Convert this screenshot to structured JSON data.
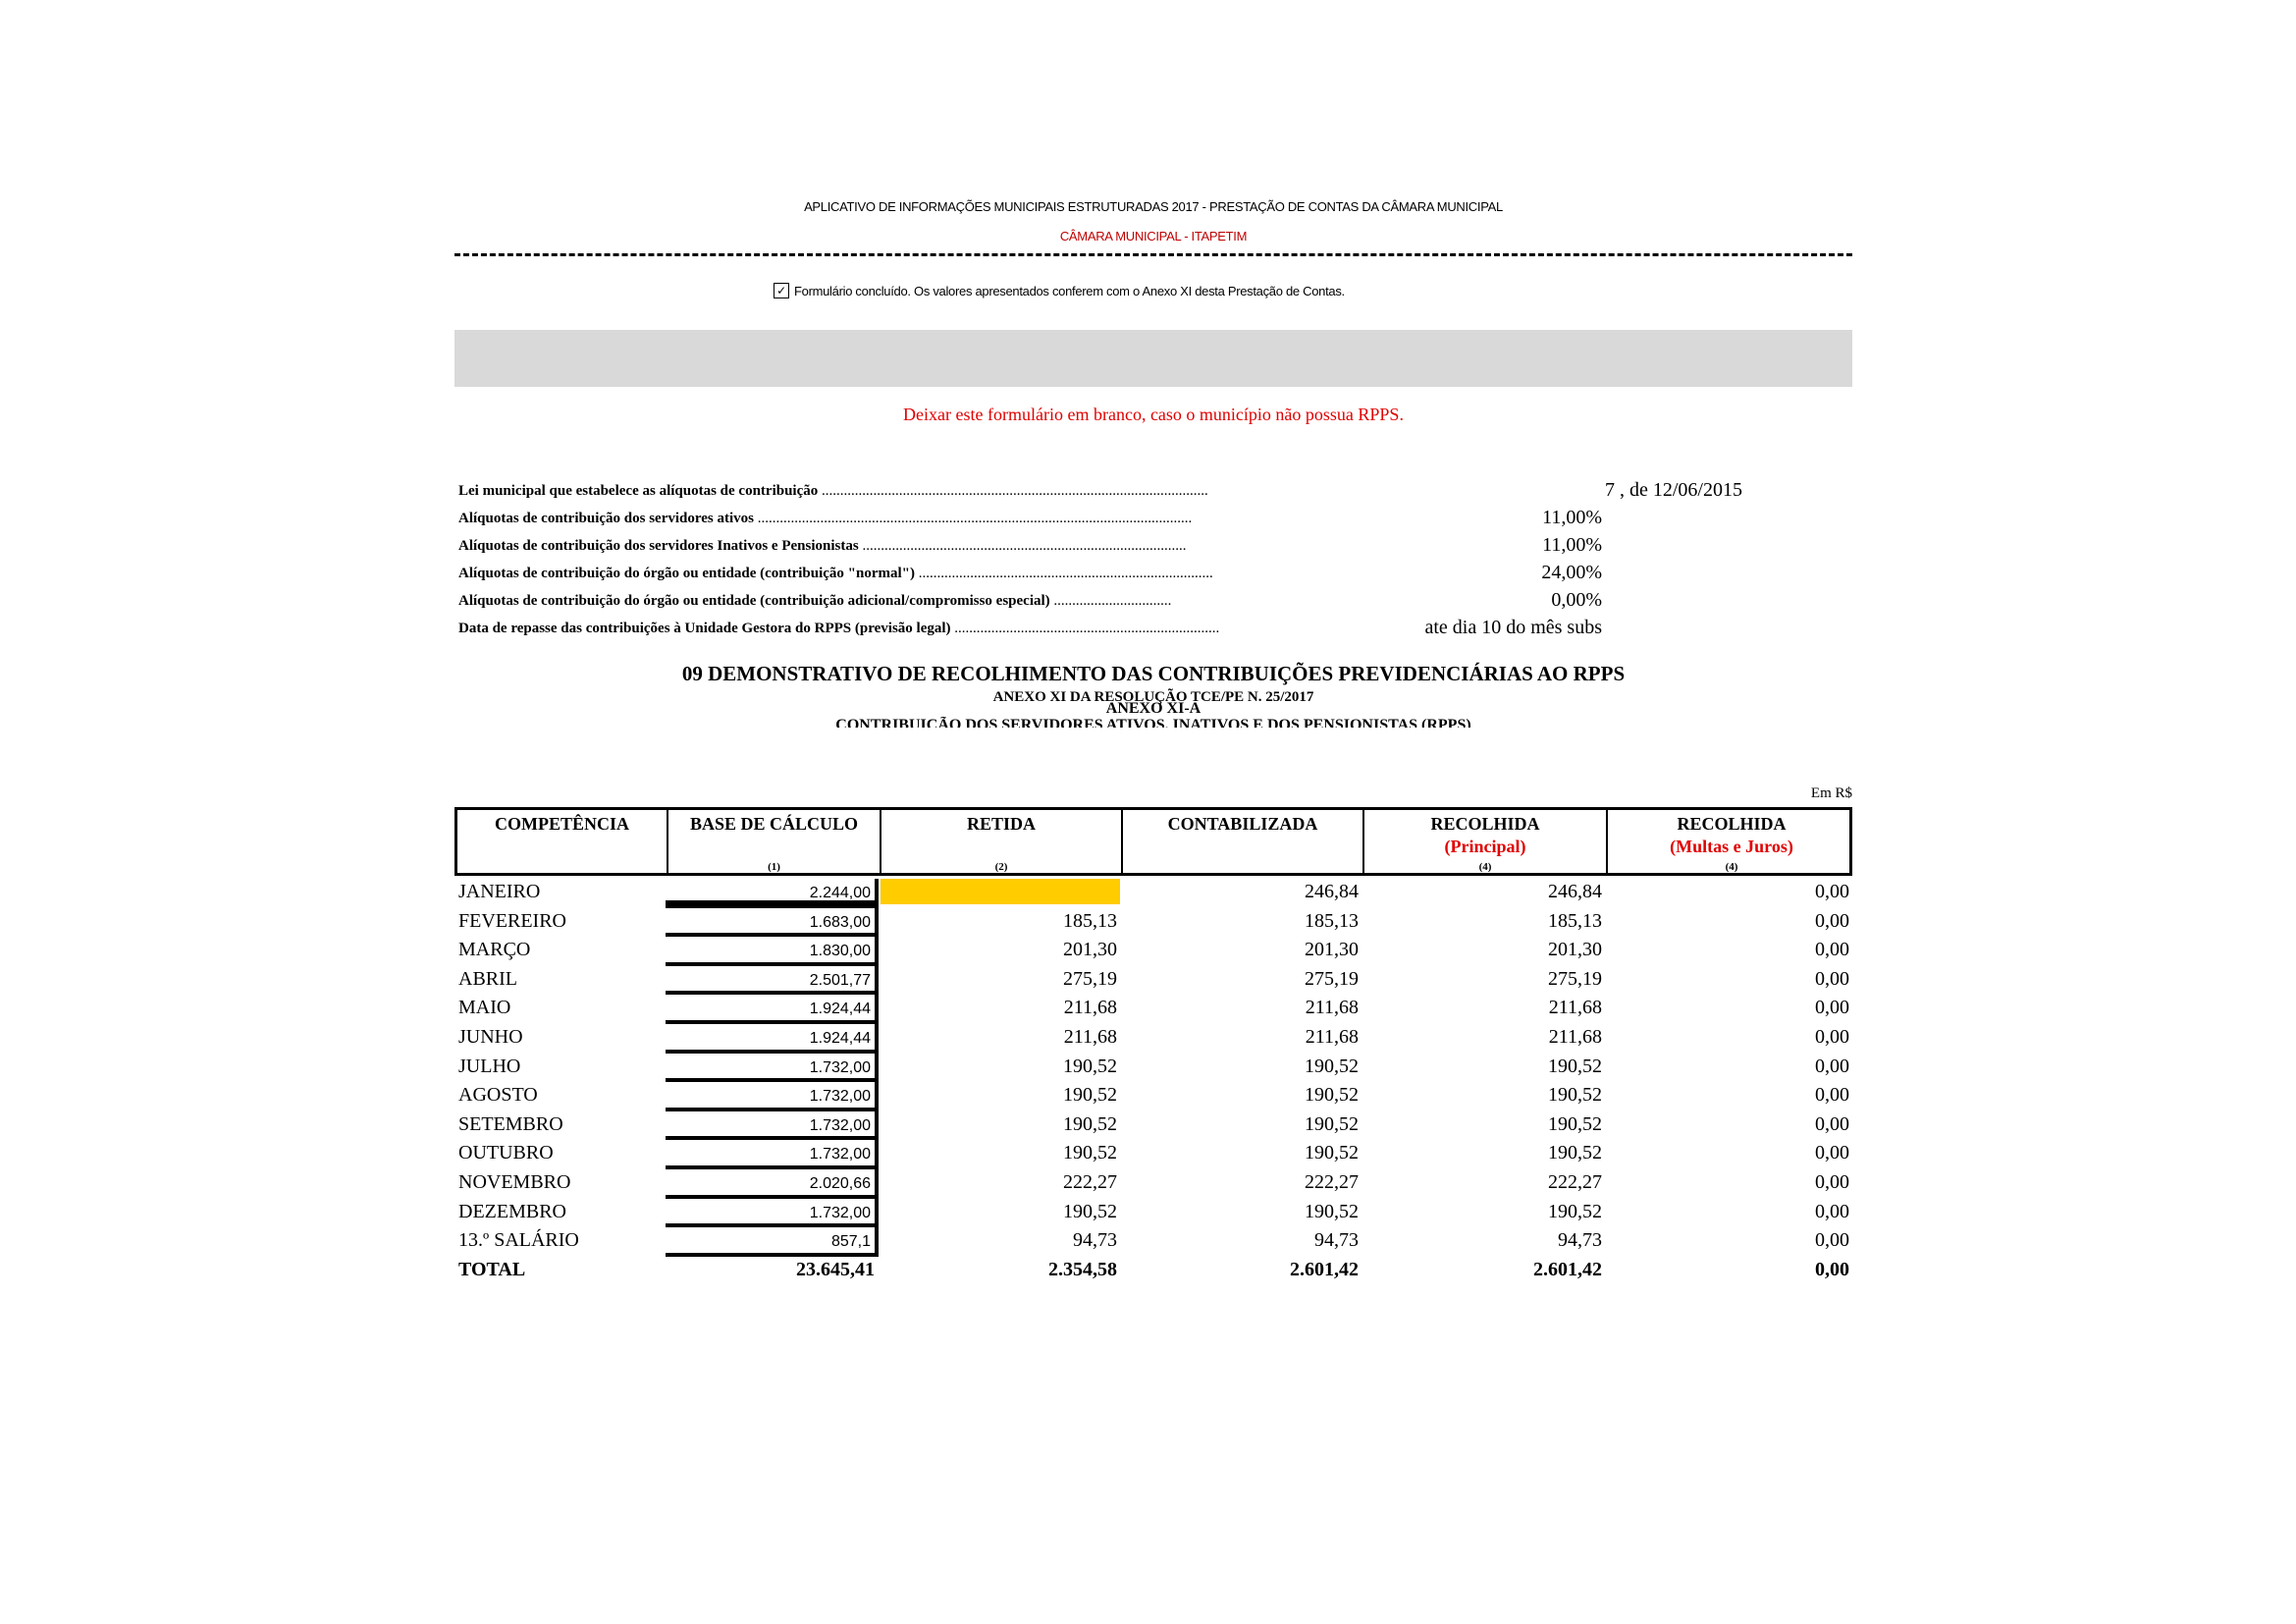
{
  "header": {
    "app_title": "APLICATIVO DE INFORMAÇÕES MUNICIPAIS ESTRUTURADAS 2017 - PRESTAÇÃO DE CONTAS DA CÂMARA MUNICIPAL",
    "entity": "CÂMARA MUNICIPAL - ITAPETIM"
  },
  "confirmation": {
    "checked": true,
    "check_glyph": "✓",
    "text": "Formulário concluído. Os valores apresentados conferem com o Anexo XI desta Prestação de Contas."
  },
  "form": {
    "title": "09 DEMONSTRATIVO DE RECOLHIMENTO DAS CONTRIBUIÇÕES PREVIDENCIÁRIAS AO RPPS",
    "subtitle": "ANEXO XI DA RESOLUÇÃO TCE/PE N. 25/2017",
    "warning": "Deixar este formulário em branco, caso o município não possua RPPS.",
    "warning_color": "#e00000"
  },
  "info": [
    {
      "label": "Lei municipal que estabelece as alíquotas de contribuição",
      "value": "7 , de 12/06/2015"
    },
    {
      "label": "Alíquotas de contribuição dos servidores ativos",
      "value": "11,00%"
    },
    {
      "label": "Alíquotas de contribuição dos servidores Inativos e Pensionistas",
      "value": "11,00%"
    },
    {
      "label": "Alíquotas de contribuição do órgão ou entidade (contribuição \"normal\")",
      "value": "24,00%"
    },
    {
      "label": "Alíquotas de contribuição do órgão ou entidade (contribuição adicional/compromisso especial)",
      "value": "0,00%"
    },
    {
      "label": "Data de repasse das contribuições à Unidade Gestora do RPPS (previsão legal)",
      "value": "ate dia 10 do mês subs"
    }
  ],
  "annex": {
    "title": "ANEXO XI-A",
    "subtitle": "CONTRIBUIÇÃO DOS SERVIDORES ATIVOS, INATIVOS E DOS PENSIONISTAS (RPPS)",
    "currency_note": "Em R$"
  },
  "table": {
    "columns": [
      {
        "label": "COMPETÊNCIA",
        "sub": "",
        "note": ""
      },
      {
        "label": "BASE DE CÁLCULO",
        "sub": "",
        "note": "(1)"
      },
      {
        "label": "RETIDA",
        "sub": "",
        "note": "(2)"
      },
      {
        "label": "CONTABILIZADA",
        "sub": "",
        "note": ""
      },
      {
        "label": "RECOLHIDA",
        "sub": "(Principal)",
        "note": "(4)"
      },
      {
        "label": "RECOLHIDA",
        "sub": "(Multas e Juros)",
        "note": "(4)"
      }
    ],
    "rows": [
      [
        "JANEIRO",
        "2.244,00",
        "",
        "246,84",
        "246,84",
        "0,00"
      ],
      [
        "FEVEREIRO",
        "1.683,00",
        "185,13",
        "185,13",
        "185,13",
        "0,00"
      ],
      [
        "MARÇO",
        "1.830,00",
        "201,30",
        "201,30",
        "201,30",
        "0,00"
      ],
      [
        "ABRIL",
        "2.501,77",
        "275,19",
        "275,19",
        "275,19",
        "0,00"
      ],
      [
        "MAIO",
        "1.924,44",
        "211,68",
        "211,68",
        "211,68",
        "0,00"
      ],
      [
        "JUNHO",
        "1.924,44",
        "211,68",
        "211,68",
        "211,68",
        "0,00"
      ],
      [
        "JULHO",
        "1.732,00",
        "190,52",
        "190,52",
        "190,52",
        "0,00"
      ],
      [
        "AGOSTO",
        "1.732,00",
        "190,52",
        "190,52",
        "190,52",
        "0,00"
      ],
      [
        "SETEMBRO",
        "1.732,00",
        "190,52",
        "190,52",
        "190,52",
        "0,00"
      ],
      [
        "OUTUBRO",
        "1.732,00",
        "190,52",
        "190,52",
        "190,52",
        "0,00"
      ],
      [
        "NOVEMBRO",
        "2.020,66",
        "222,27",
        "222,27",
        "222,27",
        "0,00"
      ],
      [
        "DEZEMBRO",
        "1.732,00",
        "190,52",
        "190,52",
        "190,52",
        "0,00"
      ],
      [
        "13.º SALÁRIO",
        "857,1",
        "94,73",
        "94,73",
        "94,73",
        "0,00"
      ]
    ],
    "total": [
      "TOTAL",
      "23.645,41",
      "2.354,58",
      "2.601,42",
      "2.601,42",
      "0,00"
    ],
    "highlight_color": "#ffcc00"
  }
}
